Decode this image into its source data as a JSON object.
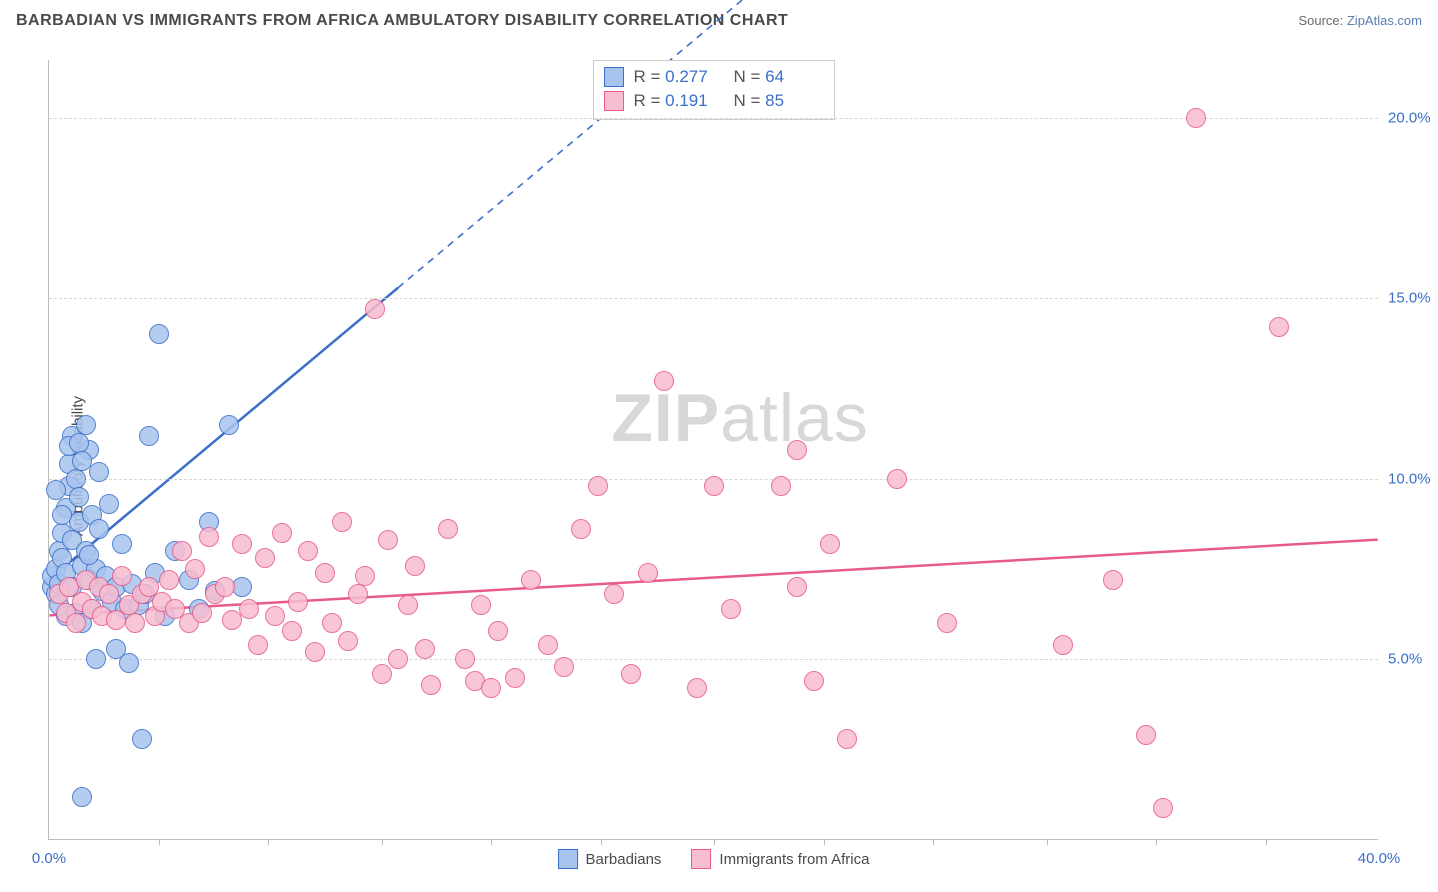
{
  "header": {
    "title": "BARBADIAN VS IMMIGRANTS FROM AFRICA AMBULATORY DISABILITY CORRELATION CHART",
    "source_prefix": "Source: ",
    "source_link": "ZipAtlas.com"
  },
  "watermark": {
    "bold": "ZIP",
    "rest": "atlas"
  },
  "chart": {
    "type": "scatter",
    "ylabel": "Ambulatory Disability",
    "background_color": "#ffffff",
    "grid_color": "#d7d7d7",
    "axis_color": "#bdbdbd",
    "tick_label_color": "#3b6fc8",
    "xlim": [
      0,
      40
    ],
    "ylim": [
      0,
      21.6
    ],
    "x_ticks_major": [
      0,
      40
    ],
    "x_tick_labels": [
      "0.0%",
      "40.0%"
    ],
    "x_ticks_minor": [
      3.3,
      6.6,
      10,
      13.3,
      16.6,
      20,
      23.3,
      26.6,
      30,
      33.3,
      36.6
    ],
    "y_ticks": [
      5,
      10,
      15,
      20
    ],
    "y_tick_labels": [
      "5.0%",
      "10.0%",
      "15.0%",
      "20.0%"
    ],
    "marker_radius": 10,
    "marker_border_width": 1.5,
    "marker_fill_opacity": 0.28,
    "series": [
      {
        "key": "barbadians",
        "name": "Barbadians",
        "color_stroke": "#3b6fc8",
        "color_fill": "#a8c4ee",
        "r_value": "0.277",
        "n_value": "64",
        "trend": {
          "x1": 0,
          "y1": 7.2,
          "x2": 40,
          "y2": 38.0,
          "solid_until_x": 10.5
        },
        "points": [
          [
            0.1,
            7.0
          ],
          [
            0.1,
            7.3
          ],
          [
            0.2,
            6.8
          ],
          [
            0.2,
            7.5
          ],
          [
            0.3,
            7.1
          ],
          [
            0.3,
            6.5
          ],
          [
            0.3,
            8.0
          ],
          [
            0.4,
            7.8
          ],
          [
            0.4,
            8.5
          ],
          [
            0.5,
            9.2
          ],
          [
            0.5,
            6.2
          ],
          [
            0.5,
            7.4
          ],
          [
            0.6,
            9.8
          ],
          [
            0.6,
            10.4
          ],
          [
            0.7,
            8.3
          ],
          [
            0.7,
            7.0
          ],
          [
            0.7,
            11.2
          ],
          [
            0.8,
            10.0
          ],
          [
            0.8,
            6.3
          ],
          [
            0.9,
            8.8
          ],
          [
            0.9,
            9.5
          ],
          [
            1.0,
            7.6
          ],
          [
            1.0,
            6.0
          ],
          [
            1.1,
            11.5
          ],
          [
            1.1,
            8.0
          ],
          [
            1.2,
            7.2
          ],
          [
            1.2,
            10.8
          ],
          [
            1.3,
            6.4
          ],
          [
            1.3,
            9.0
          ],
          [
            1.4,
            7.5
          ],
          [
            1.4,
            5.0
          ],
          [
            1.5,
            8.6
          ],
          [
            1.5,
            10.2
          ],
          [
            1.6,
            6.9
          ],
          [
            1.7,
            7.3
          ],
          [
            1.8,
            9.3
          ],
          [
            1.9,
            6.6
          ],
          [
            2.0,
            7.0
          ],
          [
            2.0,
            5.3
          ],
          [
            2.2,
            8.2
          ],
          [
            2.3,
            6.4
          ],
          [
            2.5,
            7.1
          ],
          [
            2.7,
            6.5
          ],
          [
            2.9,
            6.8
          ],
          [
            3.0,
            11.2
          ],
          [
            3.2,
            7.4
          ],
          [
            3.5,
            6.2
          ],
          [
            3.8,
            8.0
          ],
          [
            3.3,
            14.0
          ],
          [
            4.2,
            7.2
          ],
          [
            4.5,
            6.4
          ],
          [
            4.8,
            8.8
          ],
          [
            5.0,
            6.9
          ],
          [
            5.4,
            11.5
          ],
          [
            5.8,
            7.0
          ],
          [
            0.6,
            10.9
          ],
          [
            0.9,
            11.0
          ],
          [
            0.2,
            9.7
          ],
          [
            0.4,
            9.0
          ],
          [
            1.0,
            10.5
          ],
          [
            2.8,
            2.8
          ],
          [
            1.2,
            7.9
          ],
          [
            1.0,
            1.2
          ],
          [
            2.4,
            4.9
          ]
        ]
      },
      {
        "key": "immigrants",
        "name": "Immigrants from Africa",
        "color_stroke": "#e75a8b",
        "color_fill": "#f7bdd1",
        "r_value": "0.191",
        "n_value": "85",
        "trend": {
          "x1": 0,
          "y1": 6.2,
          "x2": 40,
          "y2": 8.3,
          "solid_until_x": 40
        },
        "points": [
          [
            0.3,
            6.8
          ],
          [
            0.5,
            6.3
          ],
          [
            0.6,
            7.0
          ],
          [
            0.8,
            6.0
          ],
          [
            1.0,
            6.6
          ],
          [
            1.1,
            7.2
          ],
          [
            1.3,
            6.4
          ],
          [
            1.5,
            7.0
          ],
          [
            1.6,
            6.2
          ],
          [
            1.8,
            6.8
          ],
          [
            2.0,
            6.1
          ],
          [
            2.2,
            7.3
          ],
          [
            2.4,
            6.5
          ],
          [
            2.6,
            6.0
          ],
          [
            2.8,
            6.8
          ],
          [
            3.0,
            7.0
          ],
          [
            3.2,
            6.2
          ],
          [
            3.4,
            6.6
          ],
          [
            3.6,
            7.2
          ],
          [
            3.8,
            6.4
          ],
          [
            4.0,
            8.0
          ],
          [
            4.2,
            6.0
          ],
          [
            4.4,
            7.5
          ],
          [
            4.6,
            6.3
          ],
          [
            4.8,
            8.4
          ],
          [
            5.0,
            6.8
          ],
          [
            5.3,
            7.0
          ],
          [
            5.5,
            6.1
          ],
          [
            5.8,
            8.2
          ],
          [
            6.0,
            6.4
          ],
          [
            6.3,
            5.4
          ],
          [
            6.5,
            7.8
          ],
          [
            6.8,
            6.2
          ],
          [
            7.0,
            8.5
          ],
          [
            7.3,
            5.8
          ],
          [
            7.5,
            6.6
          ],
          [
            7.8,
            8.0
          ],
          [
            8.0,
            5.2
          ],
          [
            8.3,
            7.4
          ],
          [
            8.5,
            6.0
          ],
          [
            8.8,
            8.8
          ],
          [
            9.0,
            5.5
          ],
          [
            9.3,
            6.8
          ],
          [
            9.5,
            7.3
          ],
          [
            10.0,
            4.6
          ],
          [
            10.2,
            8.3
          ],
          [
            10.5,
            5.0
          ],
          [
            10.8,
            6.5
          ],
          [
            11.0,
            7.6
          ],
          [
            11.3,
            5.3
          ],
          [
            11.5,
            4.3
          ],
          [
            12.0,
            8.6
          ],
          [
            12.5,
            5.0
          ],
          [
            12.8,
            4.4
          ],
          [
            13.0,
            6.5
          ],
          [
            13.5,
            5.8
          ],
          [
            14.0,
            4.5
          ],
          [
            14.5,
            7.2
          ],
          [
            15.0,
            5.4
          ],
          [
            15.5,
            4.8
          ],
          [
            16.0,
            8.6
          ],
          [
            16.5,
            9.8
          ],
          [
            17.0,
            6.8
          ],
          [
            17.5,
            4.6
          ],
          [
            18.0,
            7.4
          ],
          [
            18.5,
            12.7
          ],
          [
            19.5,
            4.2
          ],
          [
            20.0,
            9.8
          ],
          [
            20.5,
            6.4
          ],
          [
            22.0,
            9.8
          ],
          [
            22.5,
            7.0
          ],
          [
            23.0,
            4.4
          ],
          [
            23.5,
            8.2
          ],
          [
            24.0,
            2.8
          ],
          [
            25.5,
            10.0
          ],
          [
            27.0,
            6.0
          ],
          [
            30.5,
            5.4
          ],
          [
            32.0,
            7.2
          ],
          [
            33.0,
            2.9
          ],
          [
            33.5,
            0.9
          ],
          [
            9.8,
            14.7
          ],
          [
            22.5,
            10.8
          ],
          [
            34.5,
            20.0
          ],
          [
            37.0,
            14.2
          ],
          [
            13.3,
            4.2
          ]
        ]
      }
    ],
    "legend_bottom": [
      {
        "series": "barbadians"
      },
      {
        "series": "immigrants"
      }
    ]
  }
}
